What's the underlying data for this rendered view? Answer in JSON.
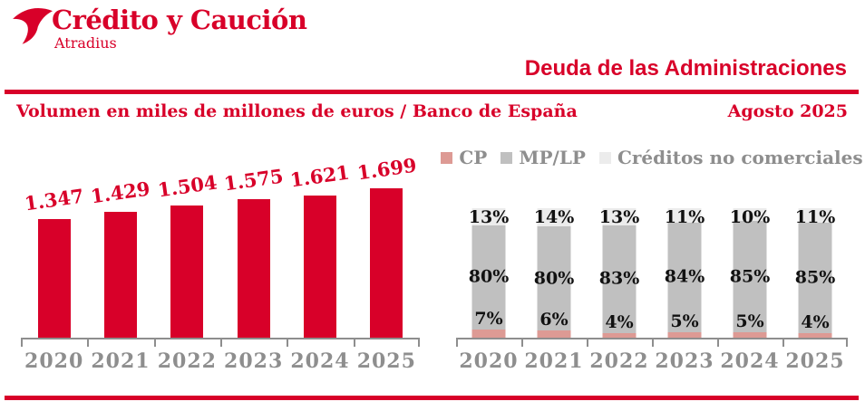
{
  "brand": {
    "logo_text": "Crédito y Caución",
    "logo_subtext": "Atradius",
    "logo_icon": "atradius-mark-icon"
  },
  "header": {
    "title": "Deuda de las Administraciones",
    "subtitle": "Volumen en miles de millones de euros  / Banco de España",
    "date": "Agosto 2025"
  },
  "colors": {
    "brand_red": "#D80029",
    "cp_pink": "#DD9A94",
    "mplp_gray": "#C0C0C0",
    "no_comercial_gray": "#ECECEC",
    "axis_gray": "#8E8E8E",
    "pct_label_black": "#111111"
  },
  "chart_data": [
    {
      "type": "bar",
      "title": "Volumen en miles de millones de euros / Banco de España",
      "categories": [
        "2020",
        "2021",
        "2022",
        "2023",
        "2024",
        "2025"
      ],
      "values": [
        1347,
        1429,
        1504,
        1575,
        1621,
        1699
      ],
      "value_labels": [
        "1.347",
        "1.429",
        "1.504",
        "1.575",
        "1.621",
        "1.699"
      ],
      "ylabel": "miles de millones de euros",
      "ylim": [
        0,
        1750
      ],
      "bar_color": "#D80029",
      "grid": false,
      "legend_position": "none"
    },
    {
      "type": "bar",
      "subtype": "stacked-percent",
      "categories": [
        "2020",
        "2021",
        "2022",
        "2023",
        "2024",
        "2025"
      ],
      "series": [
        {
          "name": "CP",
          "color": "#DD9A94",
          "values": [
            7,
            6,
            4,
            5,
            5,
            4
          ]
        },
        {
          "name": "MP/LP",
          "color": "#C0C0C0",
          "values": [
            80,
            80,
            83,
            84,
            85,
            85
          ]
        },
        {
          "name": "Créditos no comerciales",
          "color": "#ECECEC",
          "values": [
            13,
            14,
            13,
            11,
            10,
            11
          ]
        }
      ],
      "value_suffix": "%",
      "ylim": [
        0,
        100
      ],
      "grid": false,
      "legend_position": "top"
    }
  ]
}
